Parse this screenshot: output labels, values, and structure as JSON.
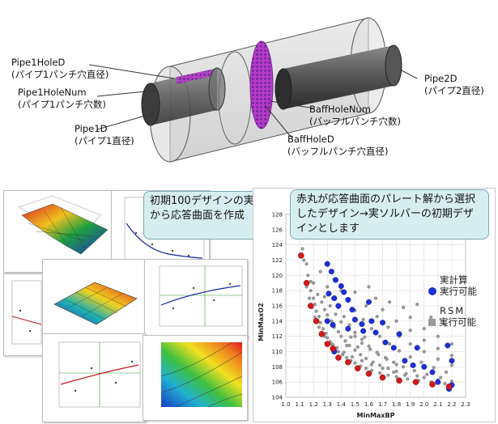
{
  "pipe_labels": {
    "pipe1_hole_d": "Pipe1HoleD",
    "pipe1_hole_d_ja": "(パイプ1パンチ穴直径)",
    "pipe1_hole_num": "Pipe1HoleNum",
    "pipe1_hole_num_ja": "(パイプ1パンチ穴数)",
    "pipe1_d": "Pipe1D",
    "pipe1_d_ja": "(パイプ1直径)",
    "pipe2_d": "Pipe2D",
    "pipe2_d_ja": "(パイプ2直径)",
    "baff_hole_num": "BaffHoleNum",
    "baff_hole_num_ja": "(バッフルパンチ穴数)",
    "baff_hole_d": "BaffHoleD",
    "baff_hole_d_ja": "(バッフルパンチ穴直径)"
  },
  "callouts": {
    "left": "初期100デザインの実計算から応答曲面を作成",
    "right": "赤丸が応答曲面のパレート解から選択したデザイン→実ソルバーの初期デザインとします"
  },
  "legend": {
    "actual": "実計算",
    "actual_feasible": "実行可能",
    "rsm": "RSM",
    "rsm_feasible": "実行可能"
  },
  "colors": {
    "callout_bg": "#d7eef0",
    "actual_marker": "#1f2fd6",
    "rsm_marker": "#9a9a9a",
    "selected_marker": "#d11b1b"
  },
  "chart_data": {
    "type": "scatter",
    "title": "",
    "xlabel": "MinMaxBP",
    "ylabel": "MinMaxO2",
    "xlim": [
      1.0,
      2.3
    ],
    "ylim": [
      104,
      128
    ],
    "xticks": [
      "1.0",
      "1.1",
      "1.2",
      "1.3",
      "1.4",
      "1.5",
      "1.6",
      "1.7",
      "1.8",
      "1.9",
      "2.0",
      "2.1",
      "2.2",
      "2.3"
    ],
    "yticks": [
      "104",
      "106",
      "108",
      "110",
      "112",
      "114",
      "116",
      "118",
      "120",
      "122",
      "124",
      "126",
      "128"
    ],
    "grid": true,
    "series": [
      {
        "name": "RSM",
        "color": "#9a9a9a",
        "points": [
          [
            1.12,
            123.5
          ],
          [
            1.13,
            122.0
          ],
          [
            1.15,
            121.5
          ],
          [
            1.16,
            120.0
          ],
          [
            1.18,
            119.2
          ],
          [
            1.18,
            118.0
          ],
          [
            1.2,
            117.0
          ],
          [
            1.21,
            116.2
          ],
          [
            1.22,
            115.3
          ],
          [
            1.24,
            114.6
          ],
          [
            1.25,
            113.8
          ],
          [
            1.27,
            113.0
          ],
          [
            1.29,
            112.4
          ],
          [
            1.3,
            111.8
          ],
          [
            1.32,
            111.3
          ],
          [
            1.34,
            110.9
          ],
          [
            1.36,
            110.4
          ],
          [
            1.38,
            110.0
          ],
          [
            1.41,
            109.6
          ],
          [
            1.44,
            109.2
          ],
          [
            1.47,
            108.8
          ],
          [
            1.5,
            108.5
          ],
          [
            1.54,
            108.1
          ],
          [
            1.58,
            107.8
          ],
          [
            1.62,
            107.5
          ],
          [
            1.68,
            107.2
          ],
          [
            1.74,
            106.9
          ],
          [
            1.8,
            106.7
          ],
          [
            1.88,
            106.4
          ],
          [
            1.96,
            106.2
          ],
          [
            2.05,
            106.0
          ],
          [
            2.15,
            105.8
          ],
          [
            1.2,
            119.0
          ],
          [
            1.23,
            117.5
          ],
          [
            1.26,
            116.5
          ],
          [
            1.28,
            115.5
          ],
          [
            1.3,
            114.8
          ],
          [
            1.33,
            114.0
          ],
          [
            1.35,
            113.2
          ],
          [
            1.38,
            112.6
          ],
          [
            1.4,
            112.0
          ],
          [
            1.43,
            111.4
          ],
          [
            1.46,
            110.8
          ],
          [
            1.5,
            110.2
          ],
          [
            1.54,
            109.6
          ],
          [
            1.58,
            109.1
          ],
          [
            1.63,
            108.6
          ],
          [
            1.68,
            108.2
          ],
          [
            1.74,
            107.8
          ],
          [
            1.8,
            107.4
          ],
          [
            1.87,
            107.1
          ],
          [
            1.95,
            106.8
          ],
          [
            1.25,
            120.5
          ],
          [
            1.3,
            118.5
          ],
          [
            1.34,
            117.0
          ],
          [
            1.38,
            115.8
          ],
          [
            1.42,
            114.6
          ],
          [
            1.46,
            113.5
          ],
          [
            1.5,
            112.5
          ],
          [
            1.55,
            111.6
          ],
          [
            1.6,
            110.7
          ],
          [
            1.66,
            109.9
          ],
          [
            1.72,
            109.2
          ],
          [
            1.78,
            108.6
          ],
          [
            1.85,
            108.0
          ],
          [
            1.93,
            107.5
          ],
          [
            2.02,
            107.0
          ],
          [
            2.12,
            106.6
          ],
          [
            1.35,
            119.5
          ],
          [
            1.4,
            118.0
          ],
          [
            1.45,
            116.6
          ],
          [
            1.5,
            115.4
          ],
          [
            1.56,
            114.2
          ],
          [
            1.62,
            113.0
          ],
          [
            1.68,
            112.0
          ],
          [
            1.75,
            111.0
          ],
          [
            1.82,
            110.1
          ],
          [
            1.9,
            109.3
          ],
          [
            1.98,
            108.6
          ],
          [
            2.07,
            107.9
          ],
          [
            2.16,
            107.3
          ],
          [
            1.5,
            117.8
          ],
          [
            1.58,
            116.0
          ],
          [
            1.66,
            114.6
          ],
          [
            1.74,
            113.2
          ],
          [
            1.82,
            112.0
          ],
          [
            1.9,
            111.0
          ],
          [
            2.0,
            110.0
          ],
          [
            2.1,
            109.0
          ],
          [
            2.2,
            108.2
          ],
          [
            1.7,
            115.5
          ],
          [
            1.8,
            114.0
          ],
          [
            1.9,
            112.8
          ],
          [
            2.0,
            111.5
          ],
          [
            2.1,
            110.4
          ],
          [
            2.2,
            109.5
          ],
          [
            1.9,
            114.5
          ],
          [
            2.0,
            113.0
          ],
          [
            2.1,
            112.0
          ],
          [
            2.2,
            111.0
          ],
          [
            1.15,
            118.5
          ],
          [
            1.17,
            117.0
          ],
          [
            1.19,
            115.8
          ],
          [
            1.21,
            114.5
          ],
          [
            1.24,
            113.2
          ],
          [
            1.28,
            112.0
          ],
          [
            1.33,
            111.0
          ],
          [
            1.37,
            110.5
          ],
          [
            1.42,
            109.9
          ],
          [
            1.48,
            109.3
          ],
          [
            1.55,
            108.8
          ],
          [
            1.62,
            108.3
          ],
          [
            1.7,
            107.8
          ],
          [
            1.78,
            107.3
          ],
          [
            1.86,
            106.9
          ],
          [
            1.28,
            117.2
          ],
          [
            1.32,
            116.0
          ],
          [
            1.36,
            114.9
          ],
          [
            1.4,
            113.9
          ],
          [
            1.45,
            112.9
          ],
          [
            1.5,
            112.0
          ],
          [
            1.55,
            111.1
          ],
          [
            1.61,
            110.3
          ],
          [
            1.67,
            109.6
          ],
          [
            1.73,
            109.0
          ],
          [
            1.8,
            108.3
          ],
          [
            1.6,
            118.5
          ],
          [
            1.65,
            117.0
          ],
          [
            1.75,
            116.5
          ],
          [
            1.85,
            115.8
          ],
          [
            1.95,
            116.2
          ],
          [
            2.05,
            114.5
          ],
          [
            2.15,
            113.5
          ],
          [
            2.0,
            106.6
          ],
          [
            2.1,
            106.3
          ],
          [
            2.2,
            106.1
          ],
          [
            1.44,
            110.8
          ],
          [
            1.52,
            110.6
          ],
          [
            1.47,
            111.9
          ],
          [
            1.57,
            111.9
          ]
        ]
      },
      {
        "name": "実計算",
        "color": "#1f2fd6",
        "points": [
          [
            1.3,
            121.5
          ],
          [
            1.33,
            120.5
          ],
          [
            1.36,
            119.4
          ],
          [
            1.4,
            118.6
          ],
          [
            1.31,
            117.6
          ],
          [
            1.35,
            117.0
          ],
          [
            1.42,
            117.8
          ],
          [
            1.45,
            116.8
          ],
          [
            1.38,
            116.0
          ],
          [
            1.48,
            115.5
          ],
          [
            1.3,
            114.0
          ],
          [
            1.34,
            113.5
          ],
          [
            1.45,
            113.0
          ],
          [
            1.5,
            114.2
          ],
          [
            1.55,
            113.6
          ],
          [
            1.6,
            116.5
          ],
          [
            1.62,
            114.0
          ],
          [
            1.65,
            112.5
          ],
          [
            1.7,
            113.8
          ],
          [
            1.72,
            111.2
          ],
          [
            1.78,
            110.5
          ],
          [
            1.82,
            112.3
          ],
          [
            1.86,
            108.8
          ],
          [
            1.92,
            108.2
          ],
          [
            1.95,
            110.5
          ],
          [
            2.0,
            108.0
          ],
          [
            2.06,
            107.3
          ],
          [
            2.1,
            106.0
          ],
          [
            2.17,
            110.8
          ],
          [
            2.2,
            108.8
          ],
          [
            2.2,
            105.6
          ],
          [
            2.18,
            105.1
          ],
          [
            1.35,
            110.0
          ],
          [
            1.56,
            112.7
          ]
        ]
      },
      {
        "name": "selected",
        "color": "#d11b1b",
        "points": [
          [
            1.11,
            122.6
          ],
          [
            1.15,
            119.0
          ],
          [
            1.18,
            116.0
          ],
          [
            1.22,
            114.0
          ],
          [
            1.26,
            112.3
          ],
          [
            1.3,
            111.0
          ],
          [
            1.34,
            110.4
          ],
          [
            1.38,
            109.2
          ],
          [
            1.45,
            108.6
          ],
          [
            1.52,
            107.8
          ],
          [
            1.6,
            107.1
          ],
          [
            1.7,
            106.6
          ],
          [
            1.82,
            106.2
          ],
          [
            1.94,
            106.0
          ],
          [
            2.06,
            105.7
          ],
          [
            2.18,
            105.4
          ]
        ]
      }
    ]
  }
}
